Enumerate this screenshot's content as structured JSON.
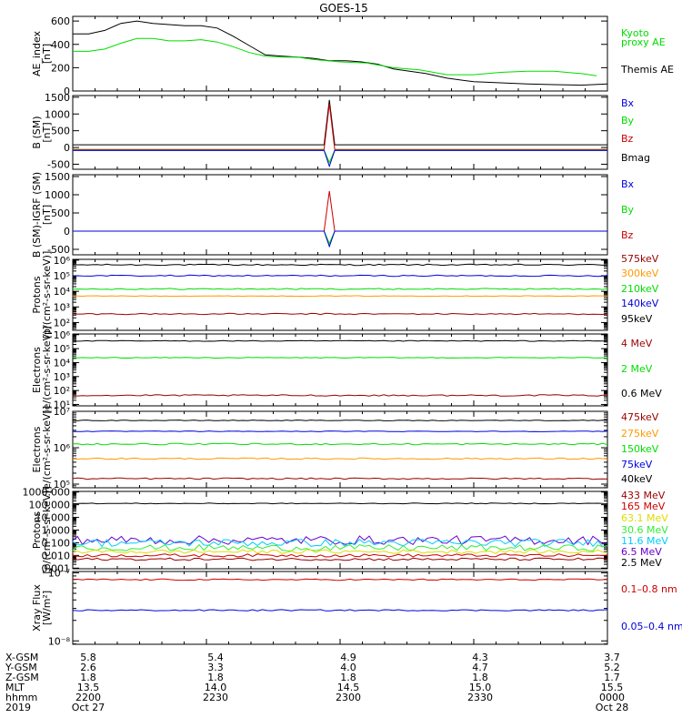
{
  "title": "GOES-15",
  "colors": {
    "black": "#000000",
    "green": "#00dd00",
    "blue": "#0000dd",
    "red": "#cc0000",
    "darkred": "#990000",
    "orange": "#ff9900",
    "cyan": "#00ccff",
    "purple": "#6600cc",
    "yellow": "#dddd00",
    "brightgreen": "#33ee33"
  },
  "chart_data": [
    {
      "type": "line",
      "ylabel": [
        "AE_index",
        "[nT]"
      ],
      "yscale": "linear",
      "ylim": [
        0,
        640
      ],
      "yticks": [
        0,
        200,
        400,
        600
      ],
      "ticklabels": [
        "0",
        "200",
        "400",
        "600"
      ],
      "legend": [
        {
          "label": "Kyoto",
          "color": "green"
        },
        {
          "label": "proxy AE",
          "color": "green"
        },
        {
          "label": "",
          "color": "black"
        },
        {
          "label": "Themis AE",
          "color": "black"
        }
      ],
      "series": [
        {
          "name": "Themis AE",
          "color": "black",
          "x": [
            0,
            0.03,
            0.06,
            0.09,
            0.12,
            0.15,
            0.18,
            0.21,
            0.24,
            0.27,
            0.3,
            0.33,
            0.36,
            0.39,
            0.42,
            0.45,
            0.48,
            0.51,
            0.54,
            0.57,
            0.6,
            0.63,
            0.66,
            0.7,
            0.75,
            0.8,
            0.85,
            0.9,
            0.95,
            1.0
          ],
          "y": [
            490,
            490,
            520,
            580,
            600,
            580,
            570,
            560,
            560,
            540,
            470,
            390,
            310,
            300,
            290,
            280,
            260,
            260,
            250,
            230,
            190,
            170,
            150,
            110,
            80,
            70,
            60,
            55,
            50,
            60
          ]
        },
        {
          "name": "Kyoto proxy AE",
          "color": "green",
          "x": [
            0,
            0.03,
            0.06,
            0.09,
            0.12,
            0.15,
            0.18,
            0.21,
            0.24,
            0.27,
            0.3,
            0.33,
            0.36,
            0.39,
            0.42,
            0.45,
            0.5,
            0.55,
            0.6,
            0.65,
            0.7,
            0.75,
            0.8,
            0.85,
            0.9,
            0.95,
            0.98
          ],
          "y": [
            340,
            340,
            360,
            410,
            450,
            450,
            430,
            430,
            440,
            420,
            380,
            330,
            300,
            290,
            290,
            270,
            250,
            240,
            200,
            180,
            140,
            140,
            160,
            170,
            170,
            150,
            130
          ]
        }
      ]
    },
    {
      "type": "line",
      "ylabel": [
        "B (SM)",
        "[nT]"
      ],
      "yscale": "linear",
      "ylim": [
        -650,
        1550
      ],
      "yticks": [
        -500,
        0,
        500,
        1000,
        1500
      ],
      "ticklabels": [
        "-500",
        "0",
        "500",
        "1000",
        "1500"
      ],
      "legend": [
        {
          "label": "Bx",
          "color": "blue"
        },
        {
          "label": "By",
          "color": "green"
        },
        {
          "label": "Bz",
          "color": "red"
        },
        {
          "label": "Bmag",
          "color": "black"
        }
      ],
      "series": [
        {
          "name": "Bmag",
          "color": "black",
          "x": [
            0,
            0.46,
            0.47,
            0.48,
            0.49,
            0.5,
            1.0
          ],
          "y": [
            80,
            80,
            80,
            1420,
            80,
            80,
            80
          ]
        },
        {
          "name": "Bz",
          "color": "red",
          "x": [
            0,
            0.46,
            0.47,
            0.48,
            0.49,
            0.5,
            1.0
          ],
          "y": [
            -60,
            -60,
            -60,
            1300,
            -60,
            -60,
            -60
          ]
        },
        {
          "name": "By",
          "color": "green",
          "x": [
            0,
            0.46,
            0.47,
            0.48,
            0.49,
            0.5,
            1.0
          ],
          "y": [
            -80,
            -80,
            -80,
            -450,
            -80,
            -80,
            -80
          ]
        },
        {
          "name": "Bx",
          "color": "blue",
          "x": [
            0,
            0.46,
            0.47,
            0.48,
            0.49,
            0.5,
            1.0
          ],
          "y": [
            -90,
            -90,
            -90,
            -560,
            -90,
            -90,
            -90
          ]
        }
      ]
    },
    {
      "type": "line",
      "ylabel": [
        "B (SM)-IGRF (SM)",
        "[nT]"
      ],
      "yscale": "linear",
      "ylim": [
        -650,
        1550
      ],
      "yticks": [
        -500,
        0,
        500,
        1000,
        1500
      ],
      "ticklabels": [
        "-500",
        "0",
        "500",
        "1000",
        "1500"
      ],
      "legend": [
        {
          "label": "Bx",
          "color": "blue"
        },
        {
          "label": "By",
          "color": "green"
        },
        {
          "label": "Bz",
          "color": "red"
        }
      ],
      "series": [
        {
          "name": "Bz",
          "color": "red",
          "x": [
            0,
            0.47,
            0.48,
            0.49,
            1.0
          ],
          "y": [
            0,
            0,
            1100,
            0,
            0
          ]
        },
        {
          "name": "By",
          "color": "green",
          "x": [
            0,
            0.47,
            0.48,
            0.49,
            1.0
          ],
          "y": [
            0,
            0,
            -340,
            0,
            0
          ]
        },
        {
          "name": "Bx",
          "color": "blue",
          "x": [
            0,
            0.47,
            0.48,
            0.49,
            1.0
          ],
          "y": [
            0,
            0,
            -420,
            0,
            0
          ]
        }
      ]
    },
    {
      "type": "line",
      "ylabel": [
        "Protons",
        "[p/(cm²-s-sr-keV)]"
      ],
      "yscale": "log",
      "ylim": [
        1.5,
        6.05
      ],
      "yticks": [
        2,
        3,
        4,
        5,
        6
      ],
      "ticklabels": [
        "10²",
        "10³",
        "10⁴",
        "10⁵",
        "10⁶"
      ],
      "legend": [
        {
          "label": "575keV",
          "color": "darkred"
        },
        {
          "label": "300keV",
          "color": "orange"
        },
        {
          "label": "210keV",
          "color": "green"
        },
        {
          "label": "140keV",
          "color": "blue"
        },
        {
          "label": "95keV",
          "color": "black"
        }
      ],
      "series": [
        {
          "name": "95keV",
          "color": "black",
          "level": 5.7,
          "noise": 0.04
        },
        {
          "name": "140keV",
          "color": "blue",
          "level": 5.0,
          "noise": 0.04
        },
        {
          "name": "210keV",
          "color": "green",
          "level": 4.15,
          "noise": 0.04
        },
        {
          "name": "300keV",
          "color": "orange",
          "level": 3.7,
          "noise": 0.02
        },
        {
          "name": "575keV",
          "color": "darkred",
          "level": 2.55,
          "noise": 0.04
        }
      ]
    },
    {
      "type": "line",
      "ylabel": [
        "Electrons",
        "[e/(cm²-s-sr-keV)]"
      ],
      "yscale": "log",
      "ylim": [
        0.9,
        6.05
      ],
      "yticks": [
        1,
        2,
        3,
        4,
        5,
        6
      ],
      "ticklabels": [
        "10¹",
        "10²",
        "10³",
        "10⁴",
        "10⁵",
        "10⁶"
      ],
      "legend": [
        {
          "label": "4 MeV",
          "color": "darkred"
        },
        {
          "label": "2 MeV",
          "color": "green"
        },
        {
          "label": "0.6 MeV",
          "color": "black"
        }
      ],
      "series": [
        {
          "name": "0.6 MeV",
          "color": "black",
          "level": 5.55,
          "noise": 0.03
        },
        {
          "name": "2 MeV",
          "color": "green",
          "level": 4.35,
          "noise": 0.03
        },
        {
          "name": "4 MeV",
          "color": "darkred",
          "level": 1.65,
          "noise": 0.05
        }
      ]
    },
    {
      "type": "line",
      "ylabel": [
        "Electrons",
        "[e/(cm²-s-sr-keV)]"
      ],
      "yscale": "log",
      "ylim": [
        4.9,
        7.0
      ],
      "yticks": [
        5,
        6,
        7
      ],
      "ticklabels": [
        "10⁵",
        "10⁶",
        "10⁷"
      ],
      "legend": [
        {
          "label": "475keV",
          "color": "darkred"
        },
        {
          "label": "275keV",
          "color": "orange"
        },
        {
          "label": "150keV",
          "color": "green"
        },
        {
          "label": "75keV",
          "color": "blue"
        },
        {
          "label": "40keV",
          "color": "black"
        }
      ],
      "series": [
        {
          "name": "40keV",
          "color": "black",
          "level": 6.75,
          "noise": 0.01
        },
        {
          "name": "75keV",
          "color": "blue",
          "level": 6.45,
          "noise": 0.01
        },
        {
          "name": "150keV",
          "color": "green",
          "level": 6.1,
          "noise": 0.02
        },
        {
          "name": "275keV",
          "color": "orange",
          "level": 5.7,
          "noise": 0.02
        },
        {
          "name": "475keV",
          "color": "darkred",
          "level": 5.15,
          "noise": 0.02
        }
      ]
    },
    {
      "type": "line",
      "ylabel": [
        "Protons",
        "[p/(cm²-s-sr-keV)]"
      ],
      "yscale": "log",
      "ylim": [
        -3.05,
        3.05
      ],
      "yticks": [
        -3,
        -2,
        -1,
        0,
        1,
        2,
        3
      ],
      "ticklabels": [
        "0.001",
        "0.010",
        "0.100",
        "1.000",
        "10.000",
        "100.000",
        "1000.000"
      ],
      "legend": [
        {
          "label": "433 MeV",
          "color": "darkred"
        },
        {
          "label": "165 MeV",
          "color": "red"
        },
        {
          "label": "63.1 MeV",
          "color": "yellow"
        },
        {
          "label": "30.6 MeV",
          "color": "brightgreen"
        },
        {
          "label": "11.6 MeV",
          "color": "cyan"
        },
        {
          "label": "6.5 MeV",
          "color": "purple"
        },
        {
          "label": "2.5 MeV",
          "color": "black"
        }
      ],
      "series": [
        {
          "name": "2.5 MeV",
          "color": "black",
          "level": 2.1,
          "noise": 0.03
        },
        {
          "name": "6.5 MeV",
          "color": "purple",
          "level": -0.8,
          "noise": 0.35
        },
        {
          "name": "11.6 MeV",
          "color": "cyan",
          "level": -1.0,
          "noise": 0.3
        },
        {
          "name": "30.6 MeV",
          "color": "brightgreen",
          "level": -1.4,
          "noise": 0.25
        },
        {
          "name": "63.1 MeV",
          "color": "yellow",
          "level": -1.7,
          "noise": 0.15
        },
        {
          "name": "165 MeV",
          "color": "red",
          "level": -2.0,
          "noise": 0.12
        },
        {
          "name": "433 MeV",
          "color": "darkred",
          "level": -2.3,
          "noise": 0.1
        }
      ]
    },
    {
      "type": "line",
      "ylabel": [
        "Xray Flux",
        "[W/m²]"
      ],
      "yscale": "log",
      "ylim": [
        -8.05,
        -6.98
      ],
      "yticks": [
        -8,
        -7
      ],
      "ticklabels": [
        "10⁻⁸",
        "10⁻⁷"
      ],
      "legend": [
        {
          "label": "0.1–0.8 nm",
          "color": "red"
        },
        {
          "label": "",
          "color": "black"
        },
        {
          "label": "0.05–0.4 nm",
          "color": "blue"
        }
      ],
      "series": [
        {
          "name": "0.1-0.8 nm",
          "color": "red",
          "level": -7.1,
          "noise": 0.01
        },
        {
          "name": "0.05-0.4 nm",
          "color": "blue",
          "level": -7.55,
          "noise": 0.01
        }
      ]
    }
  ],
  "xaxis": {
    "row_labels": [
      "X-GSM",
      "Y-GSM",
      "Z-GSM",
      "MLT",
      "hhmm",
      "2019"
    ],
    "columns": [
      [
        "5.8",
        "2.6",
        "1.8",
        "13.5",
        "2200",
        "Oct 27"
      ],
      [
        "5.4",
        "3.3",
        "1.8",
        "14.0",
        "2230",
        ""
      ],
      [
        "4.9",
        "4.0",
        "1.8",
        "14.5",
        "2300",
        ""
      ],
      [
        "4.3",
        "4.7",
        "1.8",
        "15.0",
        "2330",
        ""
      ],
      [
        "3.7",
        "5.2",
        "1.7",
        "15.5",
        "0000",
        "Oct 28"
      ]
    ]
  }
}
